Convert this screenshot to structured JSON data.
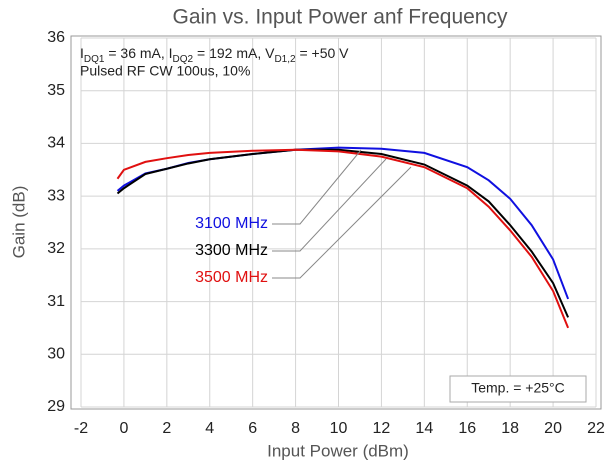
{
  "chart_data": {
    "type": "line",
    "title": "Gain vs. Input Power anf Frequency",
    "x_label": "Input Power (dBm)",
    "y_label": "Gain (dB)",
    "condition_line1": [
      "I",
      "DQ1",
      " = 36 mA, I",
      "DQ2",
      " = 192 mA, V",
      "D1,2",
      " = +50 V"
    ],
    "condition_line2": "Pulsed RF CW 100us, 10%",
    "temperature_note": "Temp. = +25°C",
    "x": [
      -0.3,
      0,
      1,
      2,
      3,
      4,
      6,
      8,
      10,
      12,
      14,
      16,
      17,
      18,
      19,
      20,
      20.7
    ],
    "series": [
      {
        "name": "3100 MHz",
        "color": "#1010e0",
        "values": [
          33.1,
          33.2,
          33.43,
          33.52,
          33.63,
          33.7,
          33.8,
          33.88,
          33.92,
          33.9,
          33.82,
          33.55,
          33.3,
          32.95,
          32.45,
          31.8,
          31.05
        ]
      },
      {
        "name": "3300 MHz",
        "color": "#000000",
        "values": [
          33.05,
          33.15,
          33.42,
          33.52,
          33.62,
          33.7,
          33.8,
          33.88,
          33.88,
          33.8,
          33.6,
          33.2,
          32.9,
          32.45,
          31.95,
          31.35,
          30.7
        ]
      },
      {
        "name": "3500 MHz",
        "color": "#e01010",
        "values": [
          33.33,
          33.5,
          33.65,
          33.72,
          33.78,
          33.82,
          33.86,
          33.88,
          33.85,
          33.75,
          33.55,
          33.15,
          32.8,
          32.35,
          31.85,
          31.2,
          30.5
        ]
      }
    ],
    "xlim": [
      -2,
      22
    ],
    "xticks": [
      -2,
      0,
      2,
      4,
      6,
      8,
      10,
      12,
      14,
      16,
      18,
      20,
      22
    ],
    "ylim": [
      29,
      36
    ],
    "yticks": [
      29,
      30,
      31,
      32,
      33,
      34,
      35,
      36
    ],
    "grid": true
  }
}
